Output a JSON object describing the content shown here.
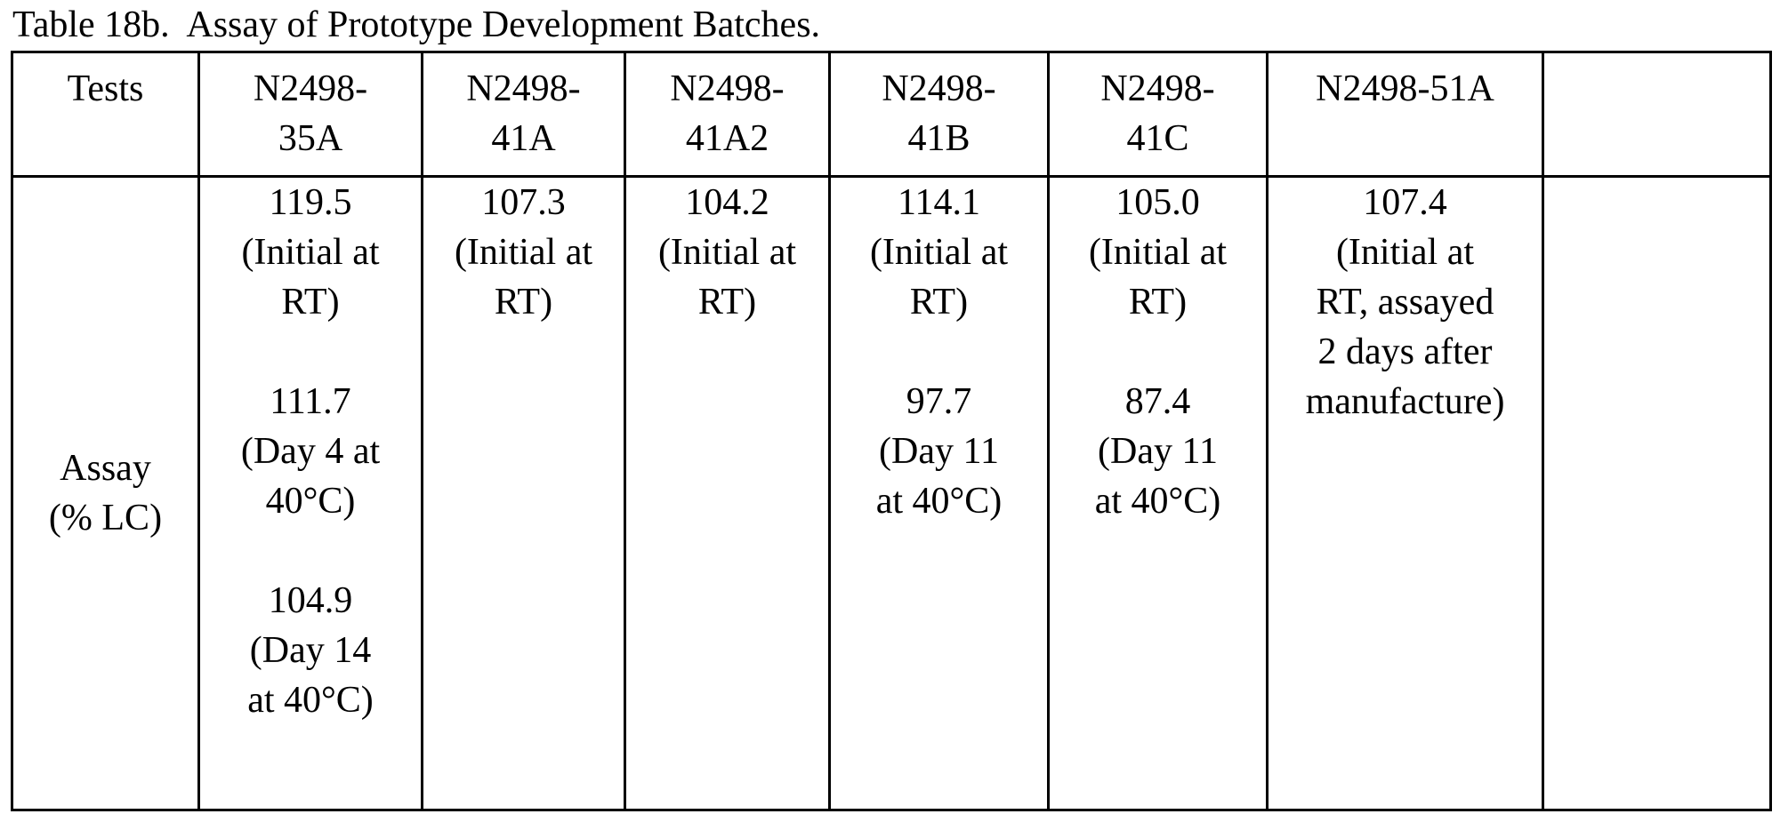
{
  "caption": "Table 18b.  Assay of Prototype Development Batches.",
  "table": {
    "header": {
      "tests": "Tests",
      "batches": [
        [
          "N2498-",
          "35A"
        ],
        [
          "N2498-",
          "41A"
        ],
        [
          "N2498-",
          "41A2"
        ],
        [
          "N2498-",
          "41B"
        ],
        [
          "N2498-",
          "41C"
        ],
        [
          "N2498-51A"
        ],
        []
      ]
    },
    "row": {
      "test": [
        "Assay",
        "(% LC)"
      ],
      "cells": [
        [
          [
            "119.5",
            "(Initial at",
            "RT)"
          ],
          [
            "111.7",
            "(Day 4 at",
            "40°C)"
          ],
          [
            "104.9",
            "(Day 14",
            "at 40°C)"
          ]
        ],
        [
          [
            "107.3",
            "(Initial at",
            "RT)"
          ]
        ],
        [
          [
            "104.2",
            "(Initial at",
            "RT)"
          ]
        ],
        [
          [
            "114.1",
            "(Initial at",
            "RT)"
          ],
          [
            "97.7",
            "(Day 11",
            "at 40°C)"
          ]
        ],
        [
          [
            "105.0",
            "(Initial at",
            "RT)"
          ],
          [
            "87.4",
            "(Day 11",
            "at 40°C)"
          ]
        ],
        [
          [
            "107.4",
            "(Initial at",
            "RT, assayed",
            "2 days after",
            "manufacture)"
          ]
        ],
        []
      ]
    }
  }
}
